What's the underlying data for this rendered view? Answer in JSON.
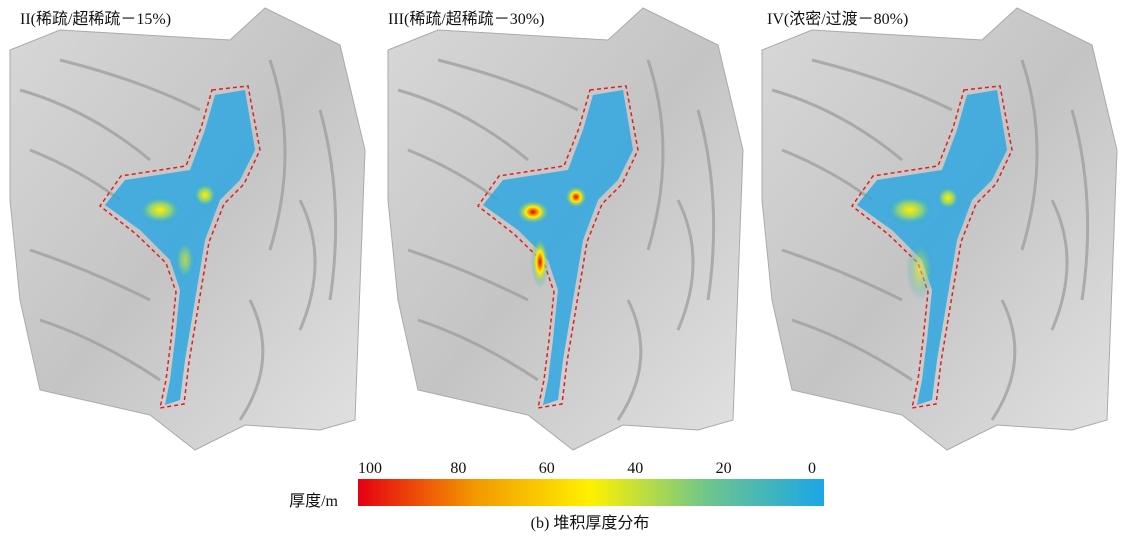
{
  "panels": [
    {
      "title": "II(稀疏/超稀疏－15%)"
    },
    {
      "title": "III(稀疏/超稀疏－30%)"
    },
    {
      "title": "IV(浓密/过渡－80%)"
    }
  ],
  "colorbar": {
    "label": "厚度/m",
    "lim": [
      100,
      0
    ],
    "ticks": [
      100,
      80,
      60,
      40,
      20,
      0
    ],
    "colors": [
      "#e60012",
      "#f39800",
      "#fff100",
      "#6ec58c",
      "#1aa6e8"
    ]
  },
  "caption": "(b) 堆积厚度分布"
}
